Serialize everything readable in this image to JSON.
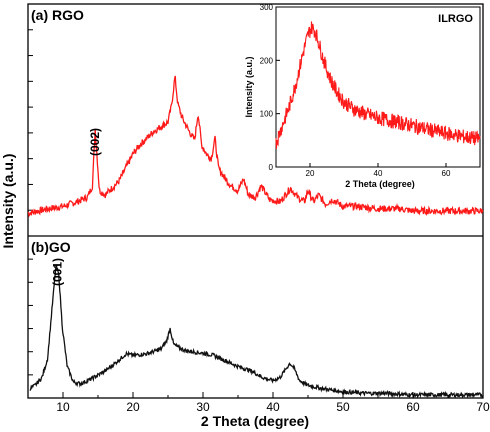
{
  "figure": {
    "ylabel": "Intensity (a.u.)",
    "xlabel": "2 Theta (degree)"
  },
  "chart_data": [
    {
      "type": "line",
      "panel_label": "(a) RGO",
      "xlim": [
        5,
        70
      ],
      "x_ticks": [],
      "series": [
        {
          "color": "#ff1a1a",
          "x": [
            5,
            8,
            10,
            12,
            13.5,
            14.2,
            14.6,
            15.2,
            16,
            18,
            19,
            20,
            21,
            22,
            23,
            24,
            25,
            25.5,
            26,
            26.4,
            27,
            28,
            28.8,
            29.3,
            29.8,
            30.5,
            31.2,
            31.7,
            32.2,
            33,
            34,
            35,
            35.8,
            36.5,
            37.5,
            38.3,
            39.5,
            41,
            42.5,
            43.5,
            44.5,
            45,
            45.8,
            46.5,
            47.5,
            48.5,
            50,
            52,
            55,
            58,
            60,
            63,
            66,
            70
          ],
          "y": [
            0.1,
            0.12,
            0.13,
            0.15,
            0.17,
            0.22,
            0.47,
            0.2,
            0.18,
            0.24,
            0.3,
            0.36,
            0.4,
            0.43,
            0.46,
            0.48,
            0.5,
            0.57,
            0.7,
            0.58,
            0.52,
            0.46,
            0.42,
            0.54,
            0.4,
            0.36,
            0.34,
            0.43,
            0.3,
            0.26,
            0.22,
            0.2,
            0.25,
            0.18,
            0.17,
            0.22,
            0.16,
            0.15,
            0.21,
            0.17,
            0.15,
            0.2,
            0.15,
            0.18,
            0.14,
            0.16,
            0.13,
            0.13,
            0.12,
            0.12,
            0.11,
            0.11,
            0.11,
            0.11
          ]
        }
      ],
      "annotations": [
        {
          "text": "(002)",
          "x": 14.6
        }
      ]
    },
    {
      "type": "line",
      "panel_label": "(b)GO",
      "xlim": [
        5,
        70
      ],
      "x_ticks": [
        10,
        20,
        30,
        40,
        50,
        60,
        70
      ],
      "series": [
        {
          "color": "#111111",
          "x": [
            5,
            6,
            7,
            7.8,
            8.4,
            9.0,
            9.4,
            9.9,
            10.6,
            11.5,
            12.5,
            14,
            16,
            18,
            19,
            20,
            22,
            24,
            24.8,
            25.3,
            25.8,
            26.5,
            27.5,
            29,
            30.5,
            31.5,
            33,
            35,
            37,
            38.5,
            40,
            41,
            41.8,
            42.4,
            43,
            43.8,
            45,
            47,
            50,
            53,
            56,
            60,
            65,
            70
          ],
          "y": [
            0.05,
            0.08,
            0.13,
            0.25,
            0.55,
            0.84,
            0.78,
            0.45,
            0.2,
            0.1,
            0.09,
            0.12,
            0.17,
            0.24,
            0.28,
            0.27,
            0.28,
            0.31,
            0.36,
            0.44,
            0.34,
            0.32,
            0.3,
            0.29,
            0.28,
            0.27,
            0.24,
            0.2,
            0.17,
            0.13,
            0.11,
            0.13,
            0.18,
            0.22,
            0.19,
            0.11,
            0.08,
            0.06,
            0.04,
            0.03,
            0.03,
            0.02,
            0.02,
            0.02
          ]
        }
      ],
      "annotations": [
        {
          "text": "(001)",
          "x": 9.2
        }
      ]
    },
    {
      "type": "line",
      "title": "ILRGO",
      "xlabel": "2 Theta (degree)",
      "ylabel": "Intensity (a.u.)",
      "xlim": [
        10,
        70
      ],
      "ylim": [
        0,
        300
      ],
      "x_ticks": [
        20,
        40,
        60
      ],
      "y_ticks": [
        0,
        100,
        200,
        300
      ],
      "series": [
        {
          "color": "#ff1a1a",
          "x": [
            10,
            12,
            14,
            16,
            18,
            19.5,
            20.5,
            21.5,
            22.5,
            24,
            26,
            28,
            30,
            33,
            36,
            40,
            45,
            50,
            55,
            60,
            65,
            70
          ],
          "y": [
            45,
            80,
            115,
            160,
            215,
            250,
            262,
            255,
            235,
            200,
            165,
            140,
            122,
            108,
            100,
            92,
            85,
            78,
            70,
            63,
            57,
            52
          ]
        }
      ]
    }
  ]
}
